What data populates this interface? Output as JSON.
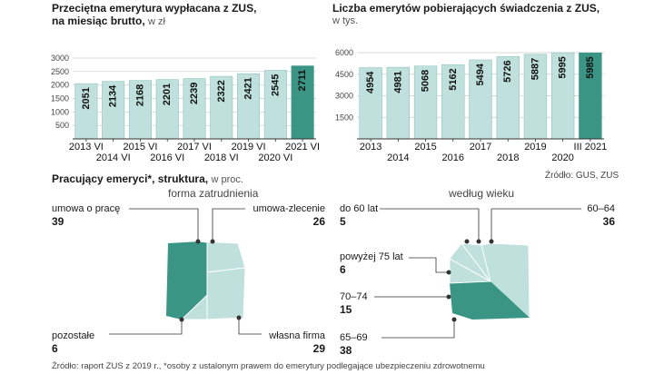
{
  "chart_data": [
    {
      "type": "bar",
      "title": "Przeciętna emerytura wypłacana z ZUS,",
      "title_line2": "na miesiąc brutto,",
      "unit": "w zł",
      "categories": [
        "2013 VI",
        "2014 VI",
        "2015 VI",
        "2016 VI",
        "2017 VI",
        "2018 VI",
        "2019 VI",
        "2020 VI",
        "2021 VI"
      ],
      "values": [
        2051,
        2134,
        2168,
        2201,
        2239,
        2322,
        2421,
        2545,
        2711
      ],
      "ylim": [
        0,
        3000
      ],
      "yticks": [
        "3000",
        "2500",
        "2000",
        "1500",
        "1000",
        "500"
      ],
      "highlight_index": 8
    },
    {
      "type": "bar",
      "title": "Liczba emerytów pobierających świadczenia z ZUS,",
      "unit": "w tys.",
      "categories": [
        "2013",
        "2014",
        "2015",
        "2016",
        "2017",
        "2018",
        "2019",
        "2020",
        "III 2021"
      ],
      "values": [
        4954,
        4981,
        5068,
        5162,
        5494,
        5726,
        5887,
        5995,
        5985
      ],
      "ylim": [
        0,
        6000
      ],
      "yticks": [
        "6000",
        "4500",
        "3000",
        "1500"
      ],
      "highlight_index": 8
    },
    {
      "type": "pie",
      "title": "forma zatrudnienia",
      "labels": [
        "umowa o pracę",
        "umowa-zlecenie",
        "własna firma",
        "pozostałe"
      ],
      "values": [
        39,
        26,
        29,
        6
      ]
    },
    {
      "type": "pie",
      "title": "według wieku",
      "labels": [
        "do 60 lat",
        "60–64",
        "65–69",
        "70–74",
        "powyżej 75 lat"
      ],
      "values": [
        5,
        36,
        38,
        15,
        6
      ]
    }
  ],
  "section_title": "Pracujący emeryci*, struktura,",
  "section_unit": "w proc.",
  "source_top": "Źródło: GUS, ZUS",
  "source_bottom": "Źródło: raport ZUS z 2019 r., *osoby z ustalonym prawem do emerytury podlegające ubezpieczeniu zdrowotnemu",
  "colors": {
    "bar": "#bfe0dc",
    "highlight": "#3a9585",
    "dark": "#3a9585",
    "light": "#bfe0dc",
    "bar_border": "#8fc4bd"
  }
}
